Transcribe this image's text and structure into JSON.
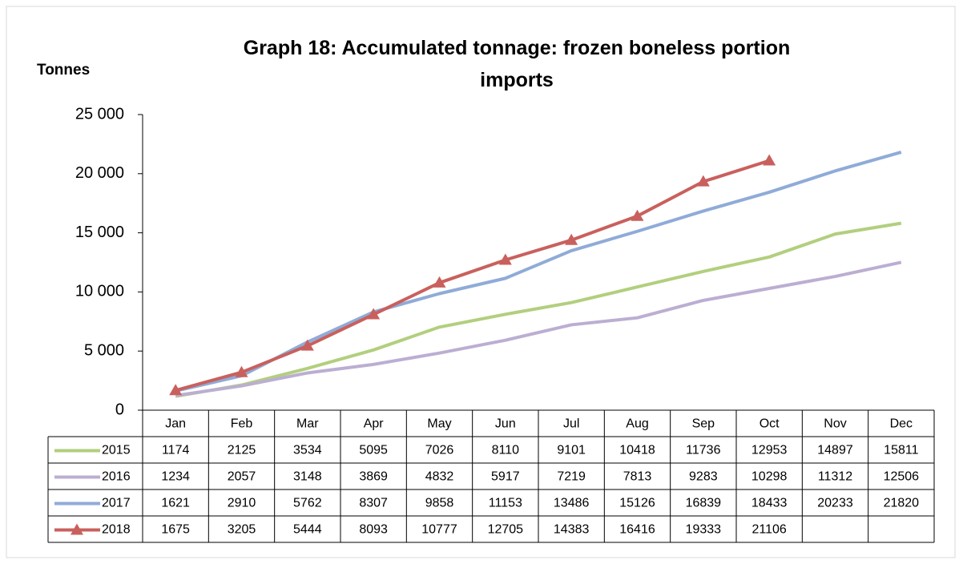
{
  "chart_data": {
    "type": "line",
    "title": "Graph 18: Accumulated tonnage: frozen boneless portion imports",
    "y_label": "Tonnes",
    "categories": [
      "Jan",
      "Feb",
      "Mar",
      "Apr",
      "May",
      "Jun",
      "Jul",
      "Aug",
      "Sep",
      "Oct",
      "Nov",
      "Dec"
    ],
    "series": [
      {
        "name": "2015",
        "color": "#b2cf7e",
        "values": [
          1174,
          2125,
          3534,
          5095,
          7026,
          8110,
          9101,
          10418,
          11736,
          12953,
          14897,
          15811
        ]
      },
      {
        "name": "2016",
        "color": "#bcaed2",
        "values": [
          1234,
          2057,
          3148,
          3869,
          4832,
          5917,
          7219,
          7813,
          9283,
          10298,
          11312,
          12506
        ]
      },
      {
        "name": "2017",
        "color": "#8fabd8",
        "values": [
          1621,
          2910,
          5762,
          8307,
          9858,
          11153,
          13486,
          15126,
          16839,
          18433,
          20233,
          21820
        ]
      },
      {
        "name": "2018",
        "color": "#c9605d",
        "marker": "triangle",
        "values": [
          1675,
          3205,
          5444,
          8093,
          10777,
          12705,
          14383,
          16416,
          19333,
          21106,
          null,
          null
        ]
      }
    ],
    "ylim": [
      0,
      25000
    ],
    "yticks": [
      0,
      {
        "value": 5000,
        "label": "5 000"
      },
      {
        "value": 10000,
        "label": "10 000"
      },
      {
        "value": 15000,
        "label": "15 000"
      },
      {
        "value": 20000,
        "label": "20 000"
      },
      {
        "value": 25000,
        "label": "25 000"
      }
    ],
    "data_table": true
  }
}
